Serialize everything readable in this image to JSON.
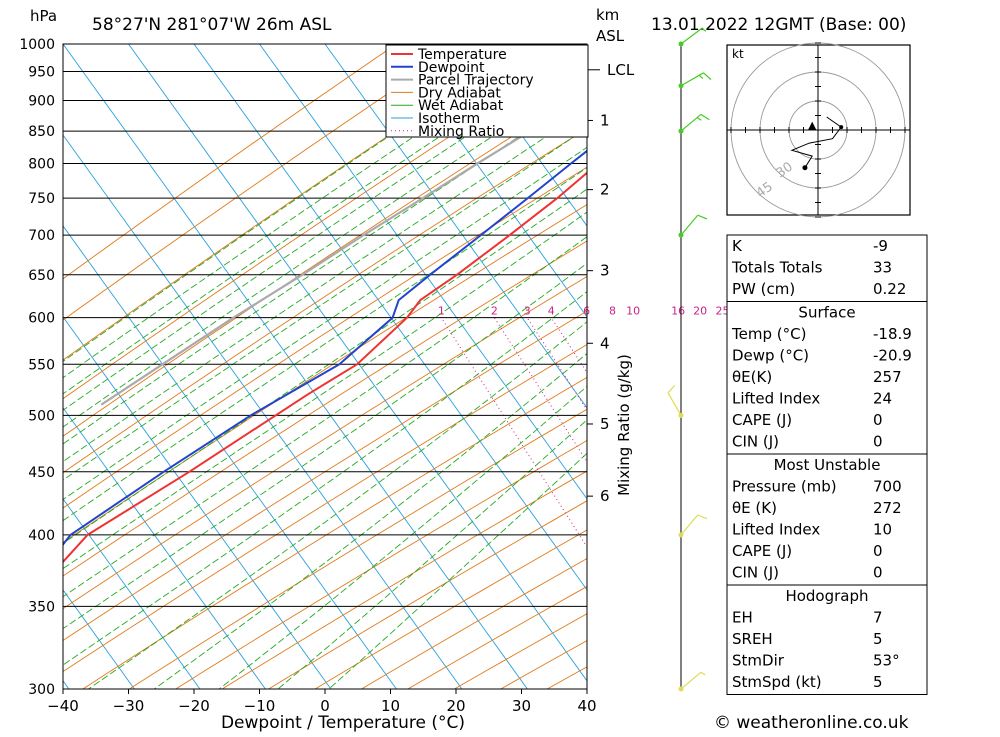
{
  "header": {
    "p_unit": "hPa",
    "location": "58°27'N  281°07'W  26m  ASL",
    "km_unit": "km",
    "asl_unit": "ASL",
    "datetime": "13.01.2022  12GMT  (Base: 00)"
  },
  "footer": {
    "copyright": "© weatheronline.co.uk"
  },
  "colors": {
    "temperature": "#ee3333",
    "dewpoint": "#2244cc",
    "parcel": "#aaaaaa",
    "dry_adiabat": "#e07a1a",
    "wet_adiabat": "#22aa22",
    "isotherm": "#2aa0dd",
    "mixing_ratio": "#cc2288",
    "wind": "#44cc22",
    "wind_yellow": "#dddd55"
  },
  "chart_data": {
    "type": "skew-t",
    "xlabel": "Dewpoint / Temperature (°C)",
    "xticks": [
      -40,
      -30,
      -20,
      -10,
      0,
      10,
      20,
      30,
      40
    ],
    "xlim": [
      -40,
      40
    ],
    "pressure_levels": [
      300,
      350,
      400,
      450,
      500,
      550,
      600,
      650,
      700,
      750,
      800,
      850,
      900,
      950,
      1000
    ],
    "ylim": [
      1000,
      300
    ],
    "y_scale": "log",
    "km_ticks": [
      {
        "km": "1",
        "p": 867
      },
      {
        "km": "2",
        "p": 762
      },
      {
        "km": "3",
        "p": 655
      },
      {
        "km": "4",
        "p": 572
      },
      {
        "km": "5",
        "p": 492
      },
      {
        "km": "6",
        "p": 430
      }
    ],
    "lcl": {
      "label": "LCL",
      "p": 953
    },
    "mixing_ratio_label": "Mixing Ratio (g/kg)",
    "mixing_ratios": [
      "1",
      "2",
      "3",
      "4",
      "6",
      "8",
      "10",
      "16",
      "20",
      "25"
    ],
    "temperature": [
      {
        "p": 1000,
        "t": -18.9
      },
      {
        "p": 970,
        "t": -18.6
      },
      {
        "p": 940,
        "t": -17.8
      },
      {
        "p": 910,
        "t": -16.8
      },
      {
        "p": 890,
        "t": -16.0
      },
      {
        "p": 860,
        "t": -14.0
      },
      {
        "p": 840,
        "t": -14.0
      },
      {
        "p": 800,
        "t": -16.1
      },
      {
        "p": 750,
        "t": -18.5
      },
      {
        "p": 700,
        "t": -21.7
      },
      {
        "p": 650,
        "t": -25.4
      },
      {
        "p": 620,
        "t": -28.2
      },
      {
        "p": 600,
        "t": -28.3
      },
      {
        "p": 550,
        "t": -30.8
      },
      {
        "p": 520,
        "t": -35.0
      },
      {
        "p": 450,
        "t": -44.6
      },
      {
        "p": 400,
        "t": -53.2
      },
      {
        "p": 380,
        "t": -54.0
      },
      {
        "p": 360,
        "t": -53.0
      },
      {
        "p": 300,
        "t": -62.4
      }
    ],
    "dewpoint": [
      {
        "p": 1000,
        "t": -20.9
      },
      {
        "p": 960,
        "t": -24.0
      },
      {
        "p": 940,
        "t": -22.5
      },
      {
        "p": 900,
        "t": -20.5
      },
      {
        "p": 880,
        "t": -19.5
      },
      {
        "p": 860,
        "t": -18.5
      },
      {
        "p": 840,
        "t": -18.0
      },
      {
        "p": 800,
        "t": -20.2
      },
      {
        "p": 750,
        "t": -23.0
      },
      {
        "p": 700,
        "t": -26.1
      },
      {
        "p": 650,
        "t": -29.5
      },
      {
        "p": 620,
        "t": -31.5
      },
      {
        "p": 600,
        "t": -30.5
      },
      {
        "p": 550,
        "t": -33.5
      },
      {
        "p": 500,
        "t": -41.4
      },
      {
        "p": 450,
        "t": -48.5
      },
      {
        "p": 400,
        "t": -55.8
      },
      {
        "p": 385,
        "t": -56.0
      },
      {
        "p": 370,
        "t": -57.5
      },
      {
        "p": 300,
        "t": -70.3
      }
    ],
    "parcel": [
      {
        "p": 1000,
        "t": -18.9
      },
      {
        "p": 953,
        "t": -22.0
      },
      {
        "p": 900,
        "t": -26.0
      },
      {
        "p": 850,
        "t": -30.0
      },
      {
        "p": 800,
        "t": -34.5
      },
      {
        "p": 750,
        "t": -39.0
      },
      {
        "p": 700,
        "t": -44.0
      },
      {
        "p": 650,
        "t": -49.0
      },
      {
        "p": 600,
        "t": -54.8
      },
      {
        "p": 550,
        "t": -60.5
      },
      {
        "p": 510,
        "t": -65.4
      }
    ],
    "legend": [
      "Temperature",
      "Dewpoint",
      "Parcel Trajectory",
      "Dry Adiabat",
      "Wet Adiabat",
      "Isotherm",
      "Mixing Ratio"
    ],
    "winds": [
      {
        "p": 1000,
        "kt": 5,
        "dir": 53
      },
      {
        "p": 925,
        "kt": 15,
        "dir": 60
      },
      {
        "p": 850,
        "kt": 15,
        "dir": 50
      },
      {
        "p": 700,
        "kt": 10,
        "dir": 40
      },
      {
        "p": 500,
        "kt": 10,
        "dir": 330
      },
      {
        "p": 400,
        "kt": 10,
        "dir": 40
      },
      {
        "p": 300,
        "kt": 5,
        "dir": 50
      }
    ]
  },
  "hodograph": {
    "unit": "kt",
    "ring_labels": [
      "30",
      "45"
    ],
    "points": [
      {
        "u": 0.6,
        "v": 0.9
      },
      {
        "u": 1.6,
        "v": 0.2
      },
      {
        "u": 1.0,
        "v": -0.6
      },
      {
        "u": -0.6,
        "v": -0.9
      },
      {
        "u": -1.8,
        "v": -1.4
      },
      {
        "u": -0.4,
        "v": -1.8
      },
      {
        "u": -0.9,
        "v": -2.6
      }
    ],
    "storm_motion": {
      "u": -0.4,
      "v": 0.3
    }
  },
  "indices": {
    "general": [
      {
        "label": "K",
        "value": "-9"
      },
      {
        "label": "Totals Totals",
        "value": "33"
      },
      {
        "label": "PW (cm)",
        "value": "0.22"
      }
    ],
    "surface": {
      "title": "Surface",
      "rows": [
        {
          "label": "Temp (°C)",
          "value": "-18.9"
        },
        {
          "label": "Dewp (°C)",
          "value": "-20.9"
        },
        {
          "label": "θE(K)",
          "value": "257"
        },
        {
          "label": "Lifted Index",
          "value": "24"
        },
        {
          "label": "CAPE (J)",
          "value": "0"
        },
        {
          "label": "CIN (J)",
          "value": "0"
        }
      ]
    },
    "most_unstable": {
      "title": "Most Unstable",
      "rows": [
        {
          "label": "Pressure (mb)",
          "value": "700"
        },
        {
          "label": "θE (K)",
          "value": "272"
        },
        {
          "label": "Lifted Index",
          "value": "10"
        },
        {
          "label": "CAPE (J)",
          "value": "0"
        },
        {
          "label": "CIN (J)",
          "value": "0"
        }
      ]
    },
    "hodograph": {
      "title": "Hodograph",
      "rows": [
        {
          "label": "EH",
          "value": "7"
        },
        {
          "label": "SREH",
          "value": "5"
        },
        {
          "label": "StmDir",
          "value": "53°"
        },
        {
          "label": "StmSpd (kt)",
          "value": "5"
        }
      ]
    }
  }
}
